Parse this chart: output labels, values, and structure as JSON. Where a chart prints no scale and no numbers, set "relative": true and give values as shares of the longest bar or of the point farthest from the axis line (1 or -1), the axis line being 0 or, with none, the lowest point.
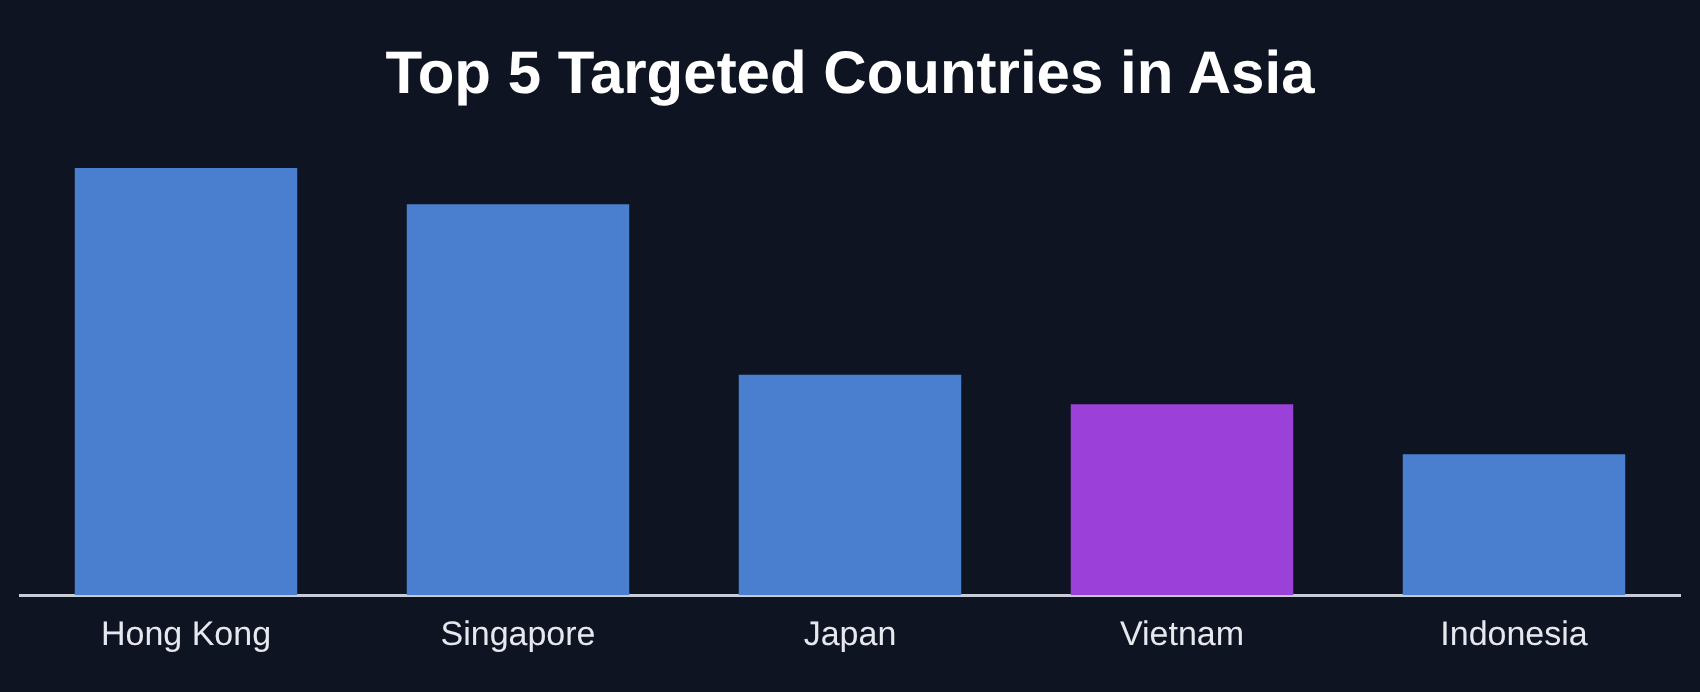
{
  "chart_data": {
    "type": "bar",
    "title": "Top 5 Targeted Countries in Asia",
    "relative": true,
    "categories": [
      "Hong Kong",
      "Singapore",
      "Japan",
      "Vietnam",
      "Indonesia"
    ],
    "values": [
      1,
      0.915,
      0.516,
      0.447,
      0.33
    ],
    "colors": [
      "#4a7fd0",
      "#4a7fd0",
      "#4a7fd0",
      "#9b40d8",
      "#4a7fd0"
    ],
    "grid": false,
    "legend": false
  }
}
